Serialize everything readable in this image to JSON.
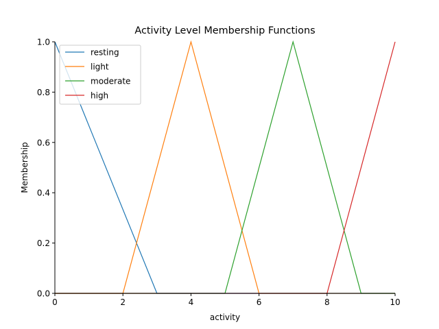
{
  "chart_data": {
    "type": "line",
    "title": "Activity Level Membership Functions",
    "xlabel": "activity",
    "ylabel": "Membership",
    "xlim": [
      0,
      10
    ],
    "ylim": [
      0,
      1
    ],
    "xticks": [
      0,
      2,
      4,
      6,
      8,
      10
    ],
    "yticks": [
      0.0,
      0.2,
      0.4,
      0.6,
      0.8,
      1.0
    ],
    "xtick_labels": [
      "0",
      "2",
      "4",
      "6",
      "8",
      "10"
    ],
    "ytick_labels": [
      "0.0",
      "0.2",
      "0.4",
      "0.6",
      "0.8",
      "1.0"
    ],
    "grid": false,
    "legend_position": "top-left",
    "series": [
      {
        "name": "resting",
        "color": "#1f77b4",
        "points": [
          [
            0,
            1.0
          ],
          [
            3,
            0.0
          ],
          [
            10,
            0.0
          ]
        ]
      },
      {
        "name": "light",
        "color": "#ff7f0e",
        "points": [
          [
            0,
            0.0
          ],
          [
            2,
            0.0
          ],
          [
            4,
            1.0
          ],
          [
            6,
            0.0
          ],
          [
            10,
            0.0
          ]
        ]
      },
      {
        "name": "moderate",
        "color": "#2ca02c",
        "points": [
          [
            0,
            0.0
          ],
          [
            5,
            0.0
          ],
          [
            7,
            1.0
          ],
          [
            9,
            0.0
          ],
          [
            10,
            0.0
          ]
        ]
      },
      {
        "name": "high",
        "color": "#d62728",
        "points": [
          [
            0,
            0.0
          ],
          [
            8,
            0.0
          ],
          [
            10,
            1.0
          ]
        ]
      }
    ]
  }
}
